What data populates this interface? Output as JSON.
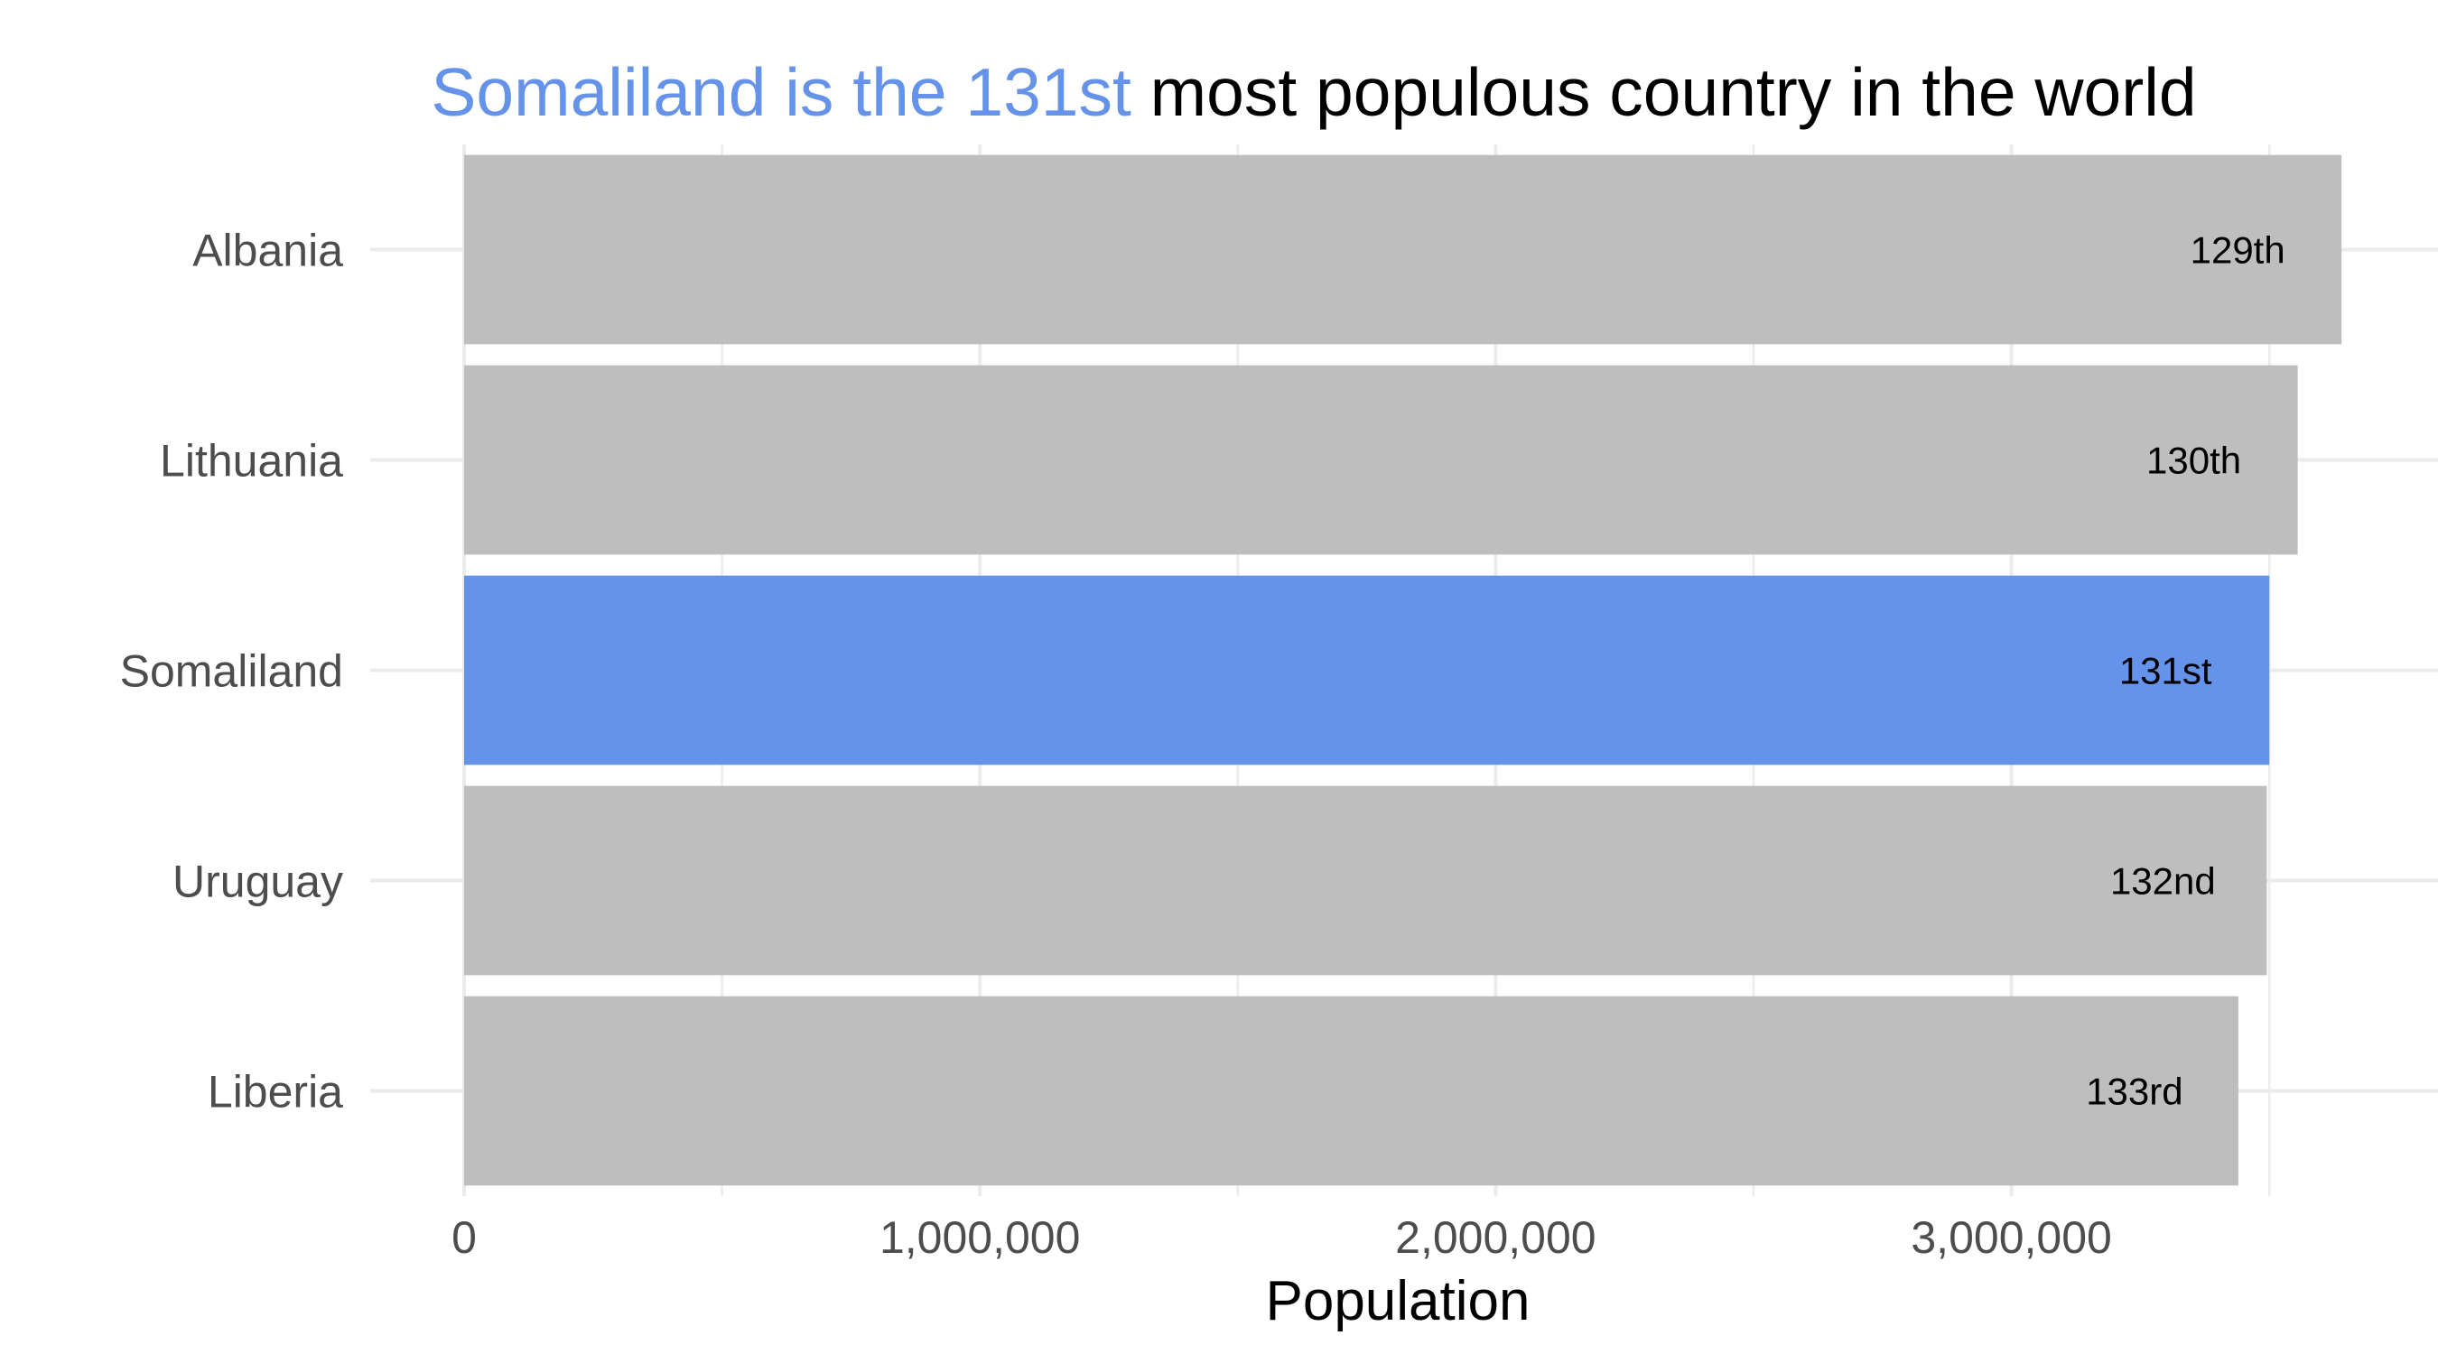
{
  "chart_data": {
    "type": "bar",
    "orientation": "horizontal",
    "title": {
      "highlight": "Somaliland is the 131st",
      "rest": " most populous country in the world"
    },
    "xlabel": "Population",
    "ylabel": "",
    "categories": [
      "Albania",
      "Lithuania",
      "Somaliland",
      "Uruguay",
      "Liberia"
    ],
    "values": [
      3640000,
      3555000,
      3500000,
      3495000,
      3440000
    ],
    "bar_labels": [
      "129th",
      "130th",
      "131st",
      "132nd",
      "133rd"
    ],
    "highlight_category": "Somaliland",
    "xlim": [
      0,
      3700000
    ],
    "xticks": [
      0,
      1000000,
      2000000,
      3000000
    ],
    "xtick_labels": [
      "0",
      "1,000,000",
      "2,000,000",
      "3,000,000"
    ],
    "grid": true,
    "legend": "none"
  },
  "colors": {
    "highlight": "#6593EA",
    "bar": "#BEBEBE",
    "grid": "#EBEBEB",
    "text": "#4d4d4d"
  }
}
